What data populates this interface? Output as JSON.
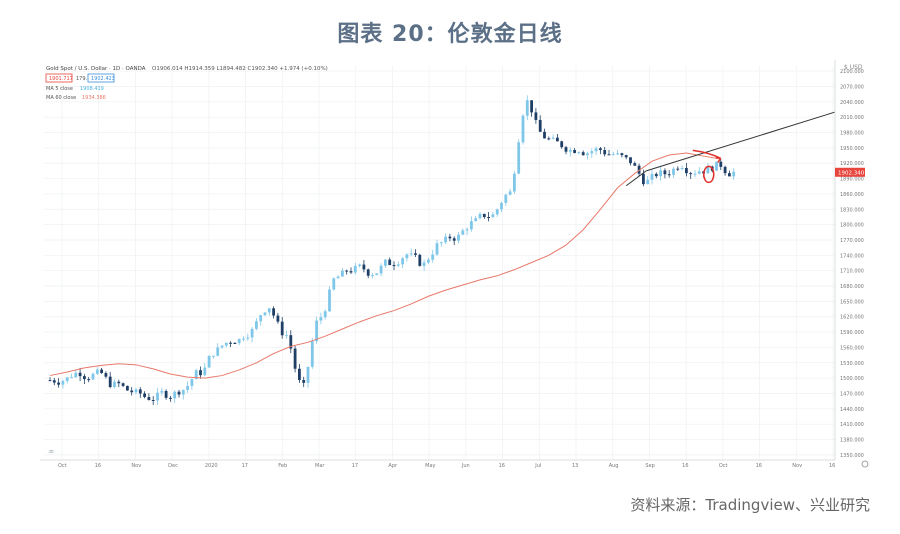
{
  "title": "图表 20：伦敦金日线",
  "source": "资料来源：Tradingview、兴业研究",
  "colors": {
    "up": "#7fc7e8",
    "down": "#1f3f66",
    "ma": "#e8796b",
    "trend": "#333333",
    "annotation": "#e0302a",
    "grid": "#eef0f3",
    "price_tag": "#e8453c"
  },
  "chart_data": {
    "type": "candlestick",
    "header": {
      "symbol": "Gold Spot / U.S. Dollar · 1D · OANDA",
      "ohlc": "O1906.014 H1914.359 L1894.482 C1902.340 +1.974 (+0.10%)",
      "sell": "1901.717",
      "spread": "179.7",
      "buy": "1902.423"
    },
    "indicators": [
      {
        "label": "MA 5 close",
        "value": "1908.419"
      },
      {
        "label": "MA 60 close",
        "value": "1934.386"
      }
    ],
    "x_labels": [
      "Oct",
      "16",
      "Nov",
      "Dec",
      "2020",
      "17",
      "Feb",
      "Mar",
      "17",
      "Apr",
      "May",
      "Jun",
      "16",
      "Jul",
      "13",
      "Aug",
      "Sep",
      "16",
      "Oct",
      "16",
      "Nov",
      "16"
    ],
    "y_labels": [
      "2100.000",
      "2070.000",
      "2040.000",
      "2010.000",
      "1980.000",
      "1950.000",
      "1920.000",
      "1890.000",
      "1860.000",
      "1830.000",
      "1800.000",
      "1770.000",
      "1740.000",
      "1710.000",
      "1680.000",
      "1650.000",
      "1620.000",
      "1590.000",
      "1560.000",
      "1530.000",
      "1500.000",
      "1470.000",
      "1440.000",
      "1410.000",
      "1380.000",
      "1350.000"
    ],
    "last_price": "1902.340",
    "ylim": [
      1340,
      2110
    ],
    "ma_values": [
      1505,
      1512,
      1520,
      1525,
      1528,
      1526,
      1518,
      1508,
      1502,
      1500,
      1505,
      1516,
      1530,
      1548,
      1562,
      1570,
      1582,
      1596,
      1610,
      1622,
      1632,
      1645,
      1660,
      1672,
      1682,
      1692,
      1700,
      1712,
      1726,
      1740,
      1760,
      1790,
      1830,
      1872,
      1900,
      1924,
      1936,
      1940,
      1934,
      1928
    ],
    "close_values": [
      1496,
      1512,
      1508,
      1486,
      1474,
      1462,
      1470,
      1478,
      1512,
      1554,
      1575,
      1592,
      1640,
      1584,
      1482,
      1620,
      1698,
      1712,
      1706,
      1726,
      1742,
      1722,
      1764,
      1776,
      1806,
      1818,
      1862,
      2040,
      1972,
      1956,
      1948,
      1946,
      1938,
      1924,
      1884,
      1900,
      1918,
      1906,
      1914,
      1902
    ],
    "trendline": {
      "from": [
        33.5,
        1876
      ],
      "to": [
        40,
        2020
      ]
    },
    "circle_at": [
      38.3,
      1902
    ]
  }
}
